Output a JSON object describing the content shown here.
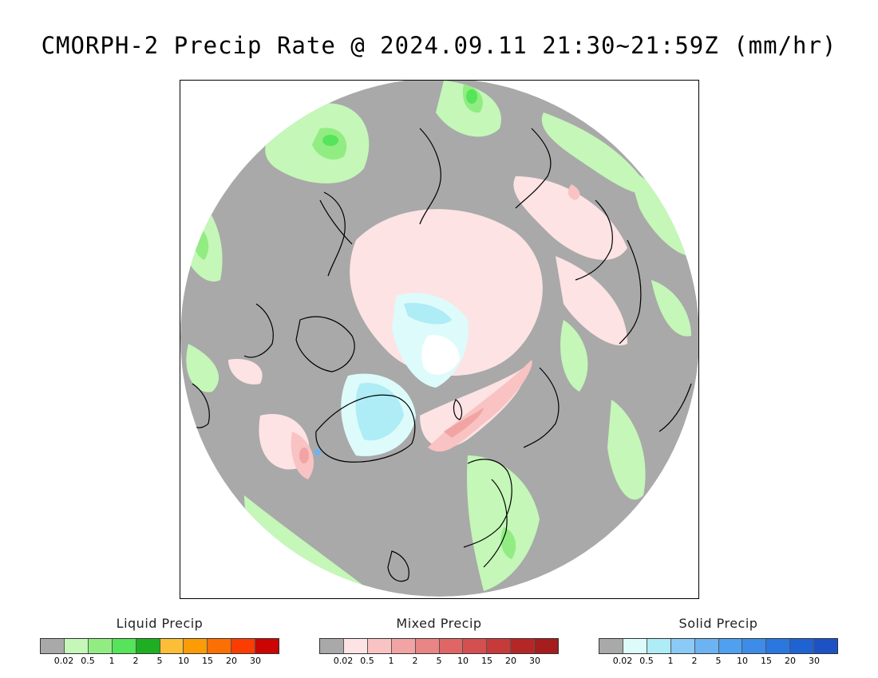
{
  "title": "CMORPH-2 Precip Rate @ 2024.09.11 21:30~21:59Z (mm/hr)",
  "map": {
    "projection": "north-polar-stereographic",
    "background_color": "#a9a9a9",
    "coastline_color": "#000000"
  },
  "legends": [
    {
      "id": "liquid",
      "label": "Liquid Precip",
      "colors": [
        "#a9a9a9",
        "#c4f7b8",
        "#91ed82",
        "#55e45a",
        "#1eae22",
        "#fbbe36",
        "#fb9c07",
        "#fb6f03",
        "#fb3c03",
        "#cb0404"
      ],
      "ticks": [
        "0.02",
        "0.5",
        "1",
        "2",
        "5",
        "10",
        "15",
        "20",
        "30"
      ]
    },
    {
      "id": "mixed",
      "label": "Mixed Precip",
      "colors": [
        "#a9a9a9",
        "#fde3e3",
        "#f9c3c3",
        "#f2a3a3",
        "#ea8585",
        "#e06666",
        "#d44f4f",
        "#c63a3a",
        "#b52727",
        "#a51d1d"
      ],
      "ticks": [
        "0.02",
        "0.5",
        "1",
        "2",
        "5",
        "10",
        "15",
        "20",
        "30"
      ]
    },
    {
      "id": "solid",
      "label": "Solid Precip",
      "colors": [
        "#a9a9a9",
        "#ddfbfb",
        "#aeecf6",
        "#8bc9f6",
        "#6cb3f1",
        "#4fa0ee",
        "#3d8ce8",
        "#2b77e0",
        "#1f63d3",
        "#1d52c5"
      ],
      "ticks": [
        "0.02",
        "0.5",
        "1",
        "2",
        "5",
        "10",
        "15",
        "20",
        "30"
      ]
    }
  ]
}
